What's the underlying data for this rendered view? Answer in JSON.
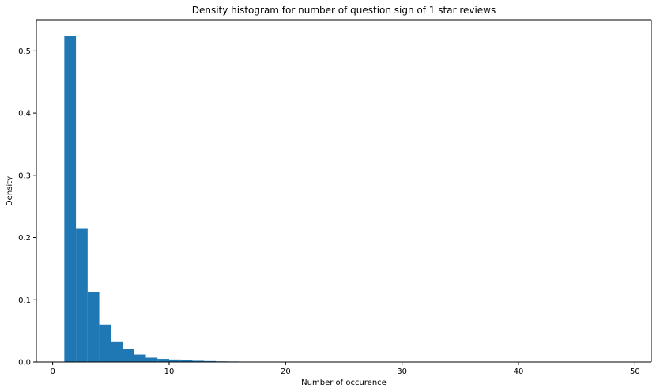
{
  "chart_data": {
    "type": "bar",
    "title": "Density histogram for number of question sign of 1 star reviews",
    "xlabel": "Number of occurence",
    "ylabel": "Density",
    "xlim": [
      -1.4,
      51.4
    ],
    "ylim": [
      0,
      0.55
    ],
    "xticks": [
      0,
      10,
      20,
      30,
      40,
      50
    ],
    "yticks": [
      0.0,
      0.1,
      0.2,
      0.3,
      0.4,
      0.5
    ],
    "bin_edges": [
      1,
      2,
      3,
      4,
      5,
      6,
      7,
      8,
      9,
      10,
      11,
      12,
      13,
      14,
      15,
      16,
      17,
      18,
      19,
      20,
      21,
      22,
      23,
      24,
      25,
      26,
      27,
      28,
      29,
      30,
      31,
      32,
      33,
      34,
      35,
      36,
      37,
      38,
      39,
      40,
      41,
      42,
      43,
      44,
      45,
      46,
      47,
      48,
      49
    ],
    "values": [
      0.524,
      0.214,
      0.113,
      0.06,
      0.032,
      0.021,
      0.012,
      0.007,
      0.005,
      0.004,
      0.003,
      0.002,
      0.0015,
      0.001,
      0.0008,
      0.0003,
      0.0002,
      0.0001,
      0.0001,
      0,
      0,
      0,
      0,
      0,
      0,
      0,
      0,
      0,
      0,
      0,
      0,
      0,
      0,
      0,
      0,
      0,
      0,
      0,
      0,
      0,
      0,
      0,
      0,
      0,
      0,
      0,
      0,
      0
    ],
    "bar_color": "#1f77b4",
    "grid": false,
    "legend": "none"
  }
}
